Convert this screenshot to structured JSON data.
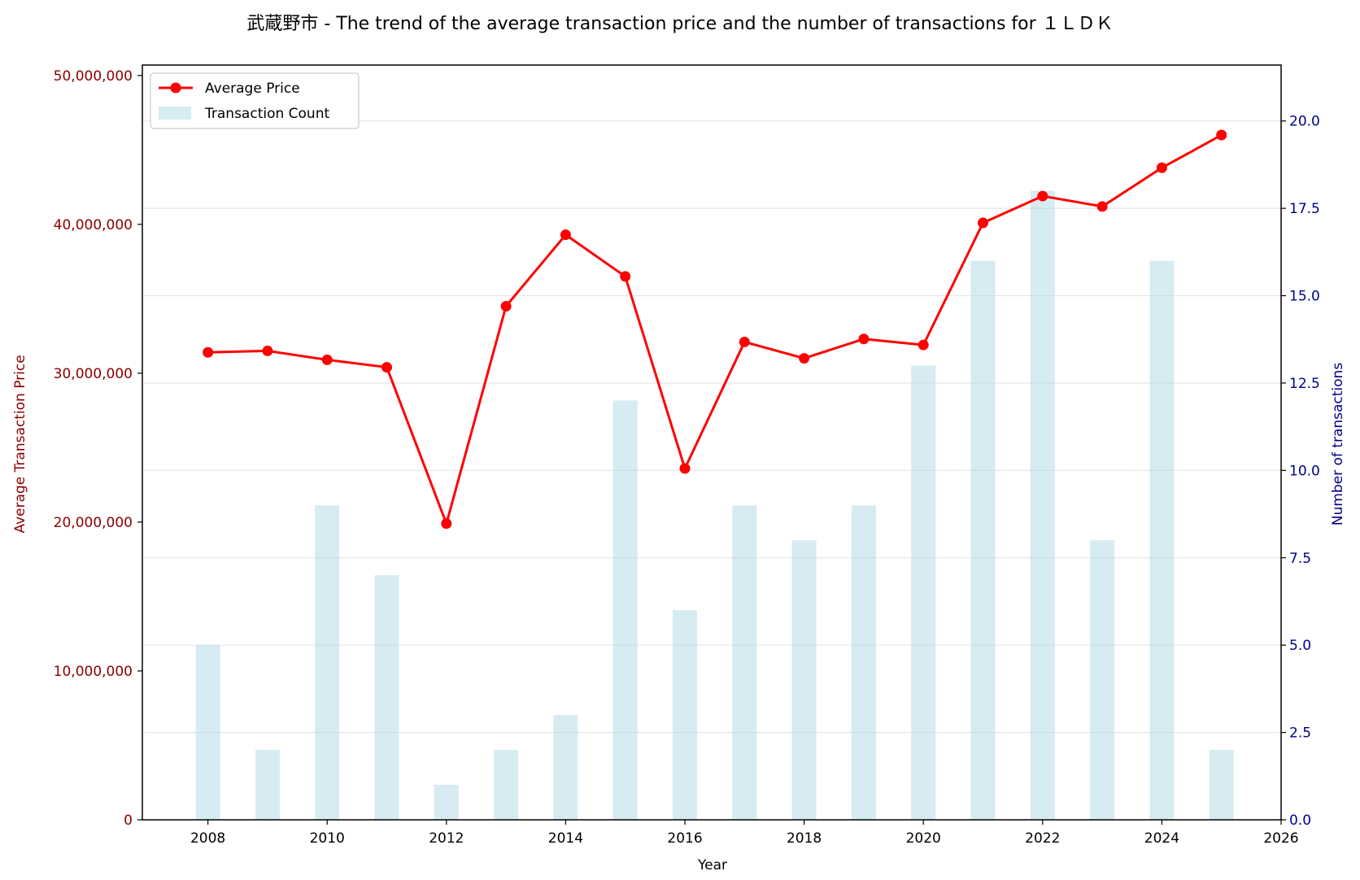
{
  "chart_data": {
    "type": "bar+line",
    "title": "武蔵野市 - The trend of the average transaction price and the number of transactions for １ＬＤＫ",
    "xlabel": "Year",
    "ylabel_left": "Average Transaction Price",
    "ylabel_right": "Number of transactions",
    "x": [
      2008,
      2009,
      2010,
      2011,
      2012,
      2013,
      2014,
      2015,
      2016,
      2017,
      2018,
      2019,
      2020,
      2021,
      2022,
      2023,
      2024,
      2025
    ],
    "xlim": [
      2006.9,
      2026.0
    ],
    "x_ticks": [
      "2008",
      "2010",
      "2012",
      "2014",
      "2016",
      "2018",
      "2020",
      "2022",
      "2024",
      "2026"
    ],
    "x_tick_values": [
      2008,
      2010,
      2012,
      2014,
      2016,
      2018,
      2020,
      2022,
      2024,
      2026
    ],
    "ylim_left": [
      0,
      50700000
    ],
    "y_left_ticks": [
      "0",
      "10,000,000",
      "20,000,000",
      "30,000,000",
      "40,000,000",
      "50,000,000"
    ],
    "y_left_tick_values": [
      0,
      10000000,
      20000000,
      30000000,
      40000000,
      50000000
    ],
    "ylim_right": [
      0,
      21.6
    ],
    "y_right_ticks": [
      "0.0",
      "2.5",
      "5.0",
      "7.5",
      "10.0",
      "12.5",
      "15.0",
      "17.5",
      "20.0"
    ],
    "y_right_tick_values": [
      0,
      2.5,
      5.0,
      7.5,
      10.0,
      12.5,
      15.0,
      17.5,
      20.0
    ],
    "grid": true,
    "legend_position": "top-left",
    "series": [
      {
        "name": "Average Price",
        "kind": "line",
        "axis": "left",
        "color": "#ff0000",
        "values": [
          31400000,
          31500000,
          30900000,
          30400000,
          19900000,
          34500000,
          39300000,
          36500000,
          23600000,
          32100000,
          31000000,
          32300000,
          31900000,
          40100000,
          41900000,
          41200000,
          43800000,
          46000000
        ]
      },
      {
        "name": "Transaction Count",
        "kind": "bar",
        "axis": "right",
        "color": "#add8e6",
        "values": [
          5,
          2,
          9,
          7,
          1,
          2,
          3,
          12,
          6,
          9,
          8,
          9,
          13,
          16,
          18,
          8,
          16,
          2
        ]
      }
    ],
    "colors": {
      "left_axis": "#8b0000",
      "right_axis": "#00008b",
      "line": "#ff0000",
      "bar": "#add8e6"
    }
  }
}
